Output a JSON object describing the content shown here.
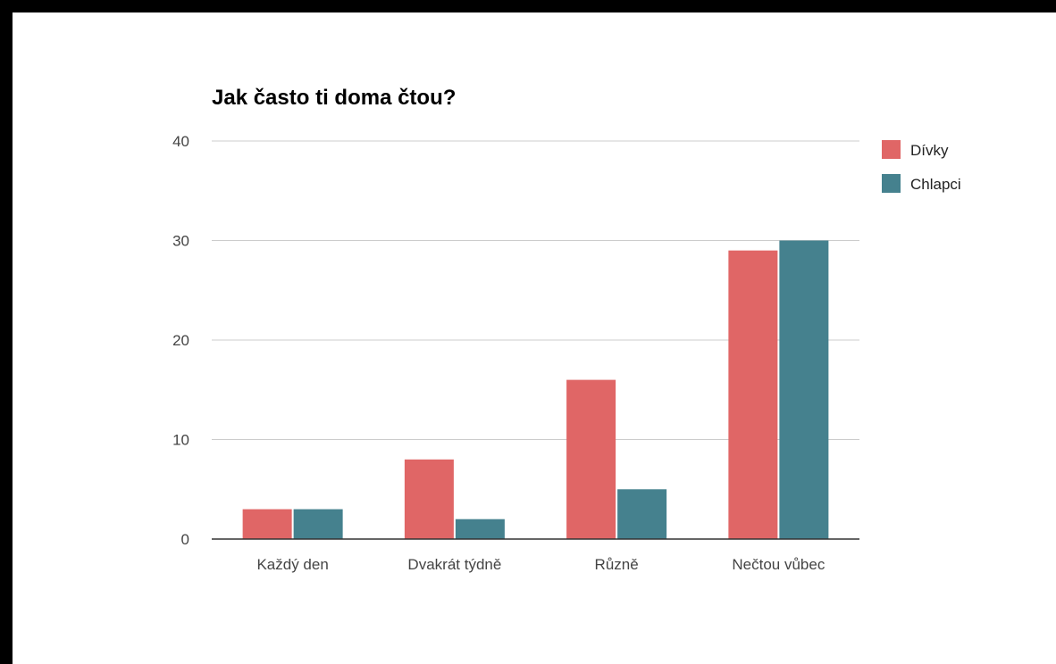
{
  "chart_data": {
    "type": "bar",
    "title": "Jak často ti doma čtou?",
    "xlabel": "",
    "ylabel": "",
    "categories": [
      "Každý den",
      "Dvakrát týdně",
      "Různě",
      "Nečtou vůbec"
    ],
    "series": [
      {
        "name": "Dívky",
        "color": "#e06666",
        "values": [
          3,
          8,
          16,
          29
        ]
      },
      {
        "name": "Chlapci",
        "color": "#45818e",
        "values": [
          3,
          2,
          5,
          30
        ]
      }
    ],
    "ylim": [
      0,
      40
    ],
    "yticks": [
      0,
      10,
      20,
      30,
      40
    ],
    "grid": true,
    "legend_position": "right"
  }
}
